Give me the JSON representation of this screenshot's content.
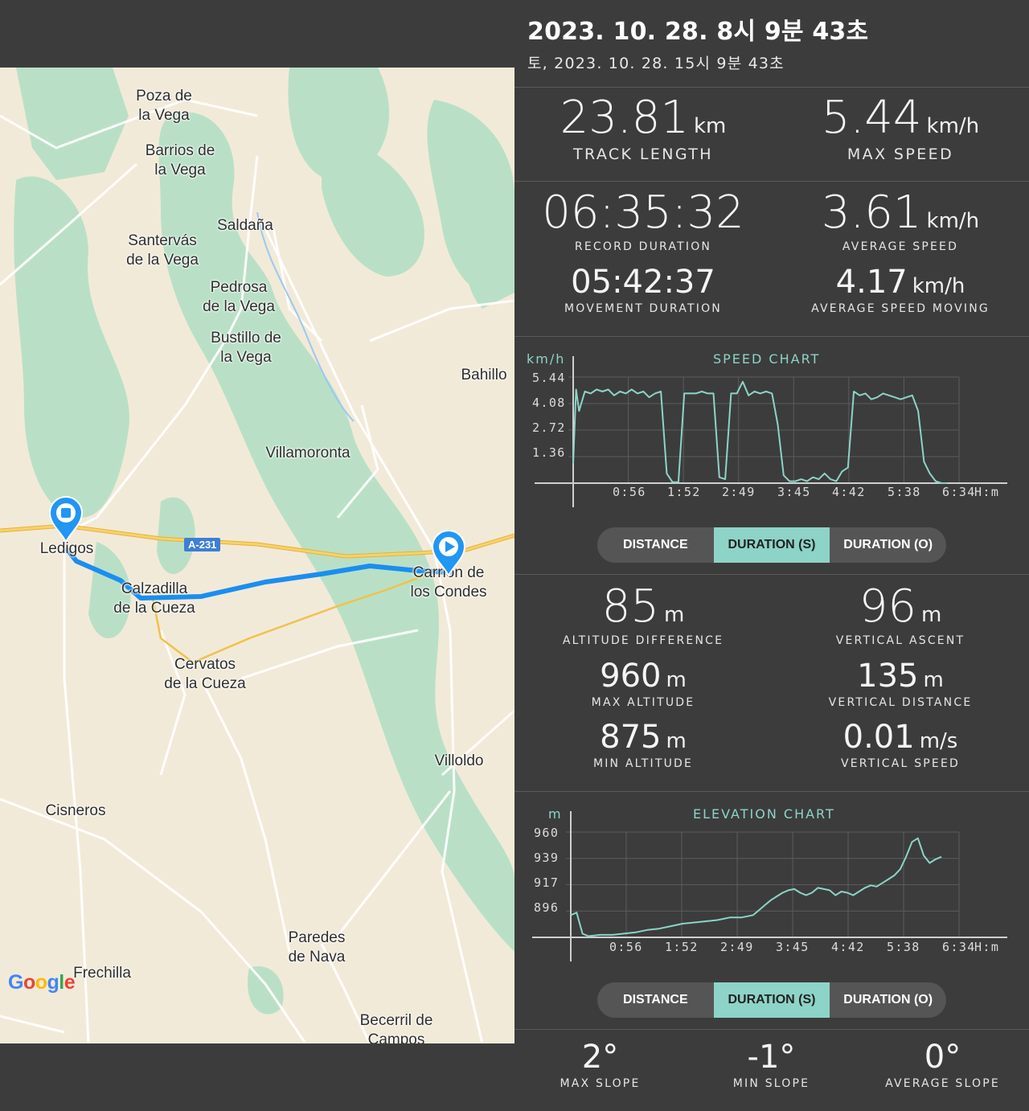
{
  "header": {
    "title": "2023. 10. 28. 8시 9분 43초",
    "subtitle": "토, 2023. 10. 28. 15시 9분 43초"
  },
  "map": {
    "places": [
      {
        "id": "poza",
        "line1": "Poza de",
        "line2": "la Vega"
      },
      {
        "id": "barrios",
        "line1": "Barrios de",
        "line2": "la Vega"
      },
      {
        "id": "saldana",
        "line1": "Saldaña",
        "line2": ""
      },
      {
        "id": "santervas",
        "line1": "Santervás",
        "line2": "de la Vega"
      },
      {
        "id": "pedrosa",
        "line1": "Pedrosa",
        "line2": "de la Vega"
      },
      {
        "id": "bustillo",
        "line1": "Bustillo de",
        "line2": "la Vega"
      },
      {
        "id": "bahillo",
        "line1": "Bahillo",
        "line2": ""
      },
      {
        "id": "villamoronta",
        "line1": "Villamoronta",
        "line2": ""
      },
      {
        "id": "ledigos",
        "line1": "Ledigos",
        "line2": ""
      },
      {
        "id": "calzadilla",
        "line1": "Calzadilla",
        "line2": "de la Cueza"
      },
      {
        "id": "carrion",
        "line1": "Carrión de",
        "line2": "los Condes"
      },
      {
        "id": "cervatos",
        "line1": "Cervatos",
        "line2": "de la Cueza"
      },
      {
        "id": "villoldo",
        "line1": "Villoldo",
        "line2": ""
      },
      {
        "id": "cisneros",
        "line1": "Cisneros",
        "line2": ""
      },
      {
        "id": "paredes",
        "line1": "Paredes",
        "line2": "de Nava"
      },
      {
        "id": "frechilla",
        "line1": "Frechilla",
        "line2": ""
      },
      {
        "id": "becerril",
        "line1": "Becerril de",
        "line2": "Campos"
      }
    ],
    "road_shield": "A-231",
    "google_logo": "Google",
    "colors": {
      "route": "#1a8ef0",
      "marker": "#2196f3",
      "road": "#f3c94a",
      "forest": "#b9e0c6",
      "land": "#f2ead8"
    }
  },
  "stats": {
    "track_length": {
      "value": "23.81",
      "unit": "km",
      "label": "TRACK LENGTH"
    },
    "max_speed": {
      "value": "5.44",
      "unit": "km/h",
      "label": "MAX SPEED"
    },
    "record_duration": {
      "value": "06:35:32",
      "label": "RECORD DURATION"
    },
    "average_speed": {
      "value": "3.61",
      "unit": "km/h",
      "label": "AVERAGE SPEED"
    },
    "movement_duration": {
      "value": "05:42:37",
      "label": "MOVEMENT DURATION"
    },
    "average_speed_moving": {
      "value": "4.17",
      "unit": "km/h",
      "label": "AVERAGE SPEED MOVING"
    },
    "altitude_difference": {
      "value": "85",
      "unit": "m",
      "label": "ALTITUDE DIFFERENCE"
    },
    "vertical_ascent": {
      "value": "96",
      "unit": "m",
      "label": "VERTICAL ASCENT"
    },
    "max_altitude": {
      "value": "960",
      "unit": "m",
      "label": "MAX ALTITUDE"
    },
    "vertical_distance": {
      "value": "135",
      "unit": "m",
      "label": "VERTICAL DISTANCE"
    },
    "min_altitude": {
      "value": "875",
      "unit": "m",
      "label": "MIN ALTITUDE"
    },
    "vertical_speed": {
      "value": "0.01",
      "unit": "m/s",
      "label": "VERTICAL SPEED"
    },
    "max_slope": {
      "value": "2°",
      "label": "MAX SLOPE"
    },
    "min_slope": {
      "value": "-1°",
      "label": "MIN SLOPE"
    },
    "average_slope": {
      "value": "0°",
      "label": "AVERAGE SLOPE"
    }
  },
  "toggles": {
    "distance": "DISTANCE",
    "duration_s": "DURATION (S)",
    "duration_o": "DURATION (O)",
    "active": "duration_s"
  },
  "chart_data": [
    {
      "type": "line",
      "title": "SPEED CHART",
      "ylabel": "km/h",
      "xlabel": "H:m",
      "x_ticks": [
        "0:56",
        "1:52",
        "2:49",
        "3:45",
        "4:42",
        "5:38",
        "6:34"
      ],
      "y_ticks": [
        "5.44",
        "4.08",
        "2.72",
        "1.36"
      ],
      "ylim": [
        0,
        5.44
      ],
      "xlim": [
        0,
        6.6
      ],
      "color": "#8ed3c8",
      "x": [
        0,
        0.05,
        0.1,
        0.15,
        0.2,
        0.3,
        0.4,
        0.5,
        0.6,
        0.7,
        0.8,
        0.9,
        1.0,
        1.1,
        1.2,
        1.3,
        1.4,
        1.5,
        1.6,
        1.7,
        1.8,
        1.9,
        2.0,
        2.1,
        2.2,
        2.3,
        2.4,
        2.5,
        2.6,
        2.7,
        2.8,
        2.9,
        3.0,
        3.1,
        3.2,
        3.3,
        3.4,
        3.5,
        3.6,
        3.7,
        3.8,
        3.9,
        4.0,
        4.1,
        4.2,
        4.3,
        4.4,
        4.5,
        4.6,
        4.7,
        4.8,
        4.9,
        5.0,
        5.1,
        5.2,
        5.3,
        5.4,
        5.5,
        5.6,
        5.7,
        5.8,
        5.9,
        6.0,
        6.1,
        6.2,
        6.3,
        6.4
      ],
      "y": [
        1.0,
        4.8,
        3.7,
        4.2,
        4.7,
        4.6,
        4.8,
        4.7,
        4.8,
        4.5,
        4.7,
        4.6,
        4.8,
        4.6,
        4.7,
        4.4,
        4.6,
        4.7,
        0.5,
        0.05,
        0.05,
        4.6,
        4.6,
        4.6,
        4.7,
        4.6,
        4.6,
        0.3,
        0.2,
        4.6,
        4.6,
        5.2,
        4.5,
        4.7,
        4.6,
        4.7,
        4.6,
        3.0,
        0.4,
        0.1,
        0.1,
        0.2,
        0.1,
        0.3,
        0.2,
        0.5,
        0.2,
        0.1,
        0.6,
        0.8,
        4.7,
        4.5,
        4.6,
        4.3,
        4.4,
        4.6,
        4.5,
        4.4,
        4.3,
        4.4,
        4.5,
        3.7,
        1.1,
        0.5,
        0.1,
        0.0,
        0.0
      ]
    },
    {
      "type": "line",
      "title": "ELEVATION CHART",
      "ylabel": "m",
      "xlabel": "H:m",
      "x_ticks": [
        "0:56",
        "1:52",
        "2:49",
        "3:45",
        "4:42",
        "5:38",
        "6:34"
      ],
      "y_ticks": [
        "960",
        "939",
        "917",
        "896"
      ],
      "ylim": [
        875,
        960
      ],
      "xlim": [
        0,
        6.6
      ],
      "color": "#8ed3c8",
      "x": [
        0,
        0.1,
        0.2,
        0.3,
        0.5,
        0.7,
        0.9,
        1.1,
        1.3,
        1.5,
        1.7,
        1.9,
        2.1,
        2.3,
        2.5,
        2.7,
        2.9,
        3.1,
        3.2,
        3.3,
        3.4,
        3.5,
        3.6,
        3.7,
        3.8,
        3.9,
        4.0,
        4.1,
        4.2,
        4.3,
        4.4,
        4.5,
        4.6,
        4.7,
        4.8,
        4.9,
        5.0,
        5.1,
        5.2,
        5.3,
        5.4,
        5.5,
        5.6,
        5.7,
        5.8,
        5.9,
        6.0,
        6.1,
        6.2,
        6.3
      ],
      "y": [
        893,
        895,
        878,
        876,
        877,
        877,
        878,
        879,
        881,
        882,
        884,
        886,
        887,
        888,
        889,
        891,
        891,
        893,
        897,
        901,
        905,
        908,
        911,
        913,
        914,
        911,
        909,
        911,
        915,
        914,
        913,
        909,
        912,
        911,
        909,
        912,
        915,
        917,
        916,
        919,
        922,
        925,
        930,
        940,
        952,
        955,
        941,
        935,
        938,
        940
      ]
    }
  ]
}
